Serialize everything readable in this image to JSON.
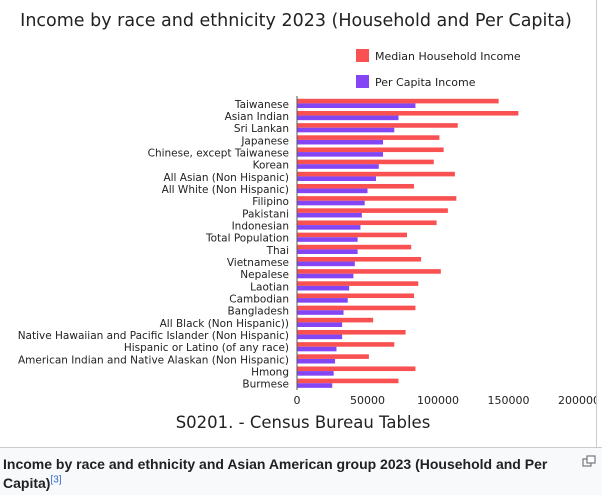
{
  "chart_data": {
    "type": "bar",
    "orientation": "horizontal",
    "title": "Income by race and ethnicity 2023 (Household and Per Capita)",
    "source": "S0201. - Census Bureau Tables",
    "legend_position": "top-right",
    "categories": [
      "Taiwanese",
      "Asian Indian",
      "Sri Lankan",
      "Japanese",
      "Chinese, except Taiwanese",
      "Korean",
      "All Asian (Non Hispanic)",
      "All White (Non Hispanic)",
      "Filipino",
      "Pakistani",
      "Indonesian",
      "Total Population",
      "Thai",
      "Vietnamese",
      "Nepalese",
      "Laotian",
      "Cambodian",
      "Bangladesh",
      "All Black (Non Hispanic))",
      "Native Hawaiian and Pacific Islander (Non Hispanic)",
      "Hispanic or Latino (of any race)",
      "American Indian and Native Alaskan (Non Hispanic)",
      "Hmong",
      "Burmese"
    ],
    "series": [
      {
        "name": "Median Household Income",
        "color": "#f95151",
        "values": [
          143000,
          157000,
          114000,
          101000,
          104000,
          97000,
          112000,
          83000,
          113000,
          107000,
          99000,
          78000,
          81000,
          88000,
          102000,
          86000,
          83000,
          84000,
          54000,
          77000,
          69000,
          51000,
          84000,
          72000
        ]
      },
      {
        "name": "Per Capita Income",
        "color": "#8446f5",
        "values": [
          84000,
          72000,
          69000,
          61000,
          61000,
          58000,
          56000,
          50000,
          48000,
          46000,
          45000,
          43000,
          43000,
          41000,
          40000,
          37000,
          36000,
          33000,
          32000,
          32000,
          28000,
          27000,
          26000,
          25000
        ]
      }
    ],
    "xlim": [
      0,
      200000
    ],
    "xticks": [
      "0",
      "50000",
      "100000",
      "150000",
      "200000"
    ],
    "xtick_values": [
      0,
      50000,
      100000,
      150000,
      200000
    ],
    "grid": false
  },
  "caption": {
    "text": "Income by race and ethnicity and Asian American group 2023 (Household and Per Capita)",
    "ref": "[3]"
  },
  "colors": {
    "axis": "#555555",
    "text": "#222222"
  }
}
